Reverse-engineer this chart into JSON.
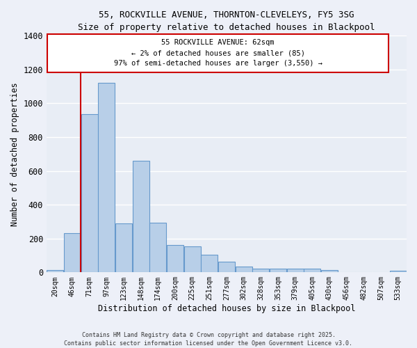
{
  "title_line1": "55, ROCKVILLE AVENUE, THORNTON-CLEVELEYS, FY5 3SG",
  "title_line2": "Size of property relative to detached houses in Blackpool",
  "xlabel": "Distribution of detached houses by size in Blackpool",
  "ylabel": "Number of detached properties",
  "categories": [
    "20sqm",
    "46sqm",
    "71sqm",
    "97sqm",
    "123sqm",
    "148sqm",
    "174sqm",
    "200sqm",
    "225sqm",
    "251sqm",
    "277sqm",
    "302sqm",
    "328sqm",
    "353sqm",
    "379sqm",
    "405sqm",
    "430sqm",
    "456sqm",
    "482sqm",
    "507sqm",
    "533sqm"
  ],
  "values": [
    15,
    230,
    935,
    1120,
    290,
    660,
    295,
    160,
    155,
    105,
    65,
    35,
    20,
    20,
    20,
    20,
    15,
    0,
    0,
    0,
    10
  ],
  "bar_color": "#b8cfe8",
  "bar_edge_color": "#6699cc",
  "background_color": "#e8edf5",
  "grid_color": "#ffffff",
  "property_line_label": "55 ROCKVILLE AVENUE: 62sqm",
  "annotation_line2": "← 2% of detached houses are smaller (85)",
  "annotation_line3": "97% of semi-detached houses are larger (3,550) →",
  "vline_color": "#cc0000",
  "annotation_box_color": "#ffffff",
  "annotation_box_edge": "#cc0000",
  "ylim": [
    0,
    1400
  ],
  "yticks": [
    0,
    200,
    400,
    600,
    800,
    1000,
    1200,
    1400
  ],
  "footnote1": "Contains HM Land Registry data © Crown copyright and database right 2025.",
  "footnote2": "Contains public sector information licensed under the Open Government Licence v3.0."
}
